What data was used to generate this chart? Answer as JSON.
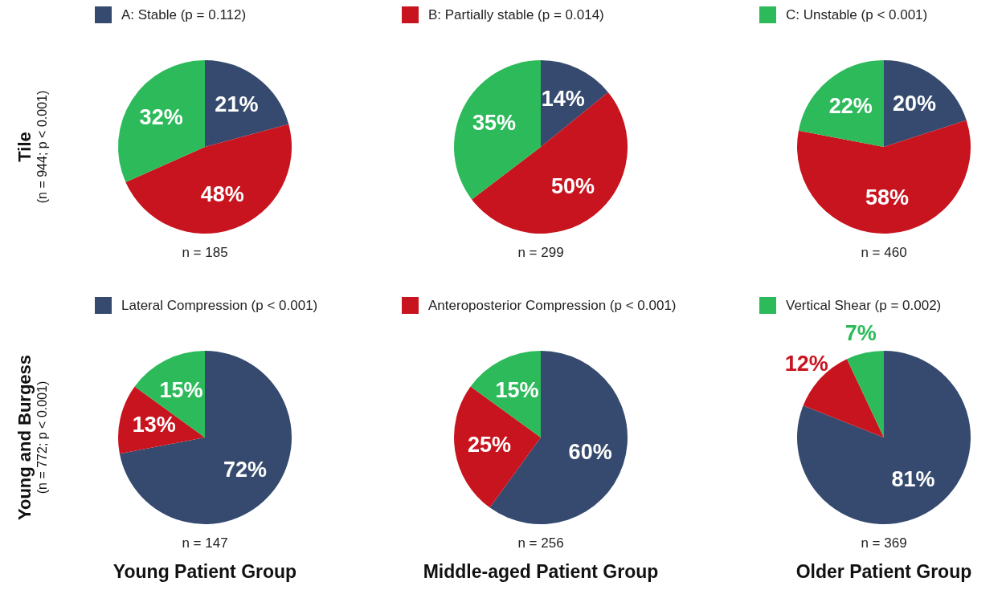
{
  "chart_data": [
    {
      "type": "pie",
      "ylabel": "Tile",
      "subtitle": "(n = 944; p < 0.001)",
      "legend": "top",
      "categories": [
        "A: Stable (p = 0.112)",
        "B: Partially stable (p = 0.014)",
        "C: Unstable (p < 0.001)"
      ],
      "values": [
        21,
        48,
        32
      ],
      "colors": [
        "#354a6e",
        "#c8141f",
        "#2dba5a"
      ],
      "value_labels": [
        "21%",
        "48%",
        "32%"
      ],
      "annotations": [
        "n = 185"
      ]
    },
    {
      "type": "pie",
      "categories": [
        null,
        null,
        null
      ],
      "values": [
        14,
        50,
        35
      ],
      "colors": [
        "#354a6e",
        "#c8141f",
        "#2dba5a"
      ],
      "value_labels": [
        "14%",
        "50%",
        "35%"
      ],
      "annotations": [
        "n = 299"
      ]
    },
    {
      "type": "pie",
      "categories": [
        null,
        null,
        null
      ],
      "values": [
        20,
        58,
        22
      ],
      "colors": [
        "#354a6e",
        "#c8141f",
        "#2dba5a"
      ],
      "value_labels": [
        "20%",
        "58%",
        "22%"
      ],
      "annotations": [
        "n = 460"
      ]
    },
    {
      "type": "pie",
      "ylabel": "Young and Burgess",
      "subtitle": "(n = 772; p < 0.001)",
      "legend": "top",
      "xlabel": "Young Patient Group",
      "categories": [
        "Lateral Compression (p < 0.001)",
        "Anteroposterior Compression (p < 0.001)",
        "Vertical Shear (p = 0.002)"
      ],
      "values": [
        72,
        13,
        15
      ],
      "colors": [
        "#354a6e",
        "#c8141f",
        "#2dba5a"
      ],
      "value_labels": [
        "72%",
        "13%",
        "15%"
      ],
      "annotations": [
        "n = 147"
      ]
    },
    {
      "type": "pie",
      "xlabel": "Middle-aged Patient Group",
      "categories": [
        null,
        null,
        null
      ],
      "values": [
        60,
        25,
        15
      ],
      "colors": [
        "#354a6e",
        "#c8141f",
        "#2dba5a"
      ],
      "value_labels": [
        "60%",
        "25%",
        "15%"
      ],
      "annotations": [
        "n = 256"
      ]
    },
    {
      "type": "pie",
      "xlabel": "Older Patient Group",
      "categories": [
        null,
        null,
        null
      ],
      "values": [
        81,
        12,
        7
      ],
      "colors": [
        "#354a6e",
        "#c8141f",
        "#2dba5a"
      ],
      "value_labels": [
        "81%",
        "12%",
        "7%"
      ],
      "annotations": [
        "n = 369"
      ]
    }
  ]
}
